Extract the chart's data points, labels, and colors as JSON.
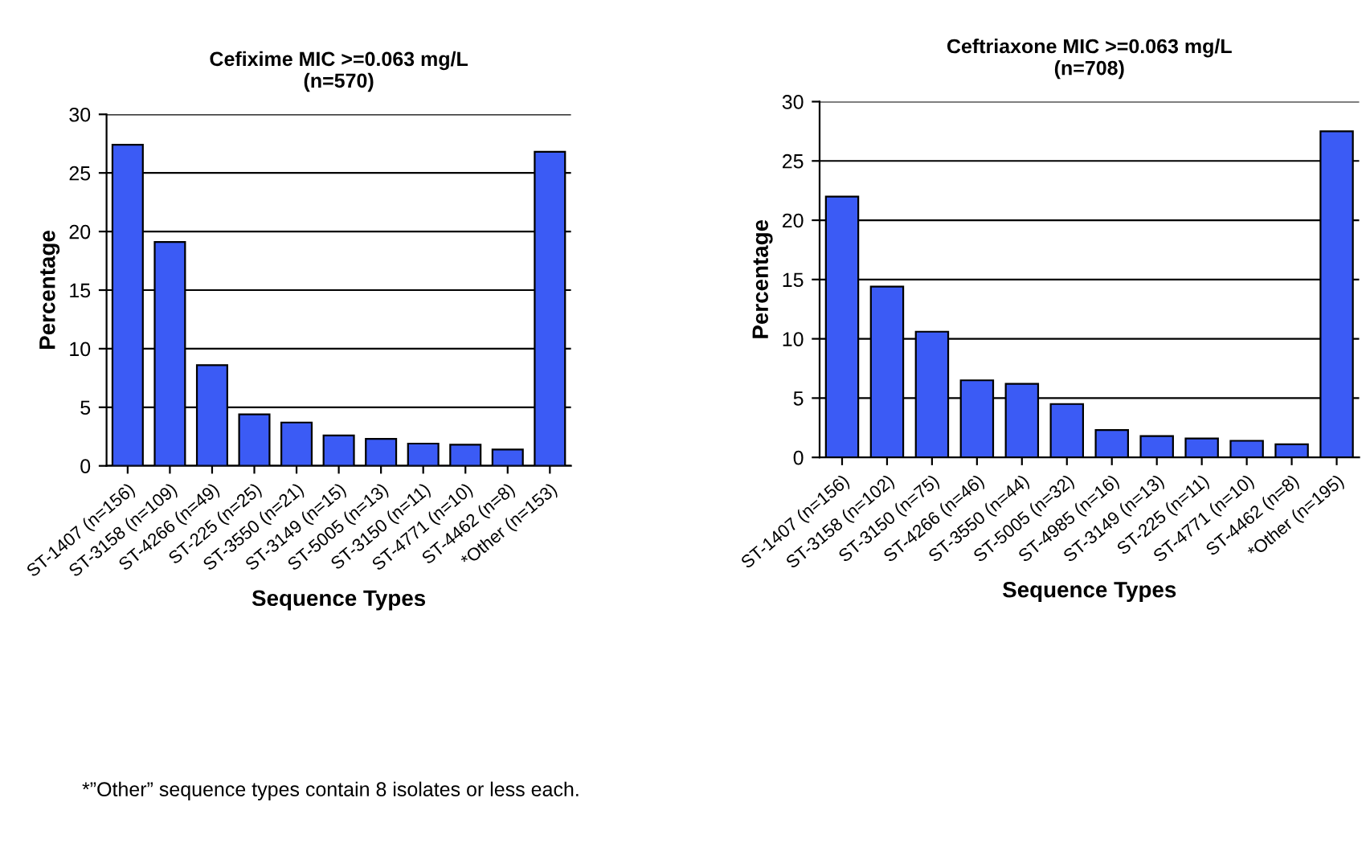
{
  "chart_data": [
    {
      "type": "bar",
      "title": "Cefixime MIC >=0.063 mg/L\n(n=570)",
      "xlabel": "Sequence Types",
      "ylabel": "Percentage",
      "categories": [
        "ST-1407 (n=156)",
        "ST-3158 (n=109)",
        "ST-4266 (n=49)",
        "ST-225 (n=25)",
        "ST-3550 (n=21)",
        "ST-3149 (n=15)",
        "ST-5005 (n=13)",
        "ST-3150 (n=11)",
        "ST-4771 (n=10)",
        "ST-4462 (n=8)",
        "*Other (n=153)"
      ],
      "values": [
        27.4,
        19.1,
        8.6,
        4.4,
        3.7,
        2.6,
        2.3,
        1.9,
        1.8,
        1.4,
        26.8
      ],
      "color": "#3b5bf5",
      "ylim": [
        0,
        30
      ],
      "yticks": [
        0,
        5,
        10,
        15,
        20,
        25,
        30
      ],
      "grid": "y",
      "annotations": [
        "*”Other” sequence types contain 8 isolates or less each."
      ]
    },
    {
      "type": "bar",
      "title": "Ceftriaxone MIC >=0.063 mg/L\n(n=708)",
      "xlabel": "Sequence Types",
      "ylabel": "Percentage",
      "categories": [
        "ST-1407 (n=156)",
        "ST-3158 (n=102)",
        "ST-3150 (n=75)",
        "ST-4266 (n=46)",
        "ST-3550 (n=44)",
        "ST-5005 (n=32)",
        "ST-4985 (n=16)",
        "ST-3149 (n=13)",
        "ST-225 (n=11)",
        "ST-4771 (n=10)",
        "ST-4462 (n=8)",
        "*Other (n=195)"
      ],
      "values": [
        22.0,
        14.4,
        10.6,
        6.5,
        6.2,
        4.5,
        2.3,
        1.8,
        1.6,
        1.4,
        1.1,
        27.5
      ],
      "color": "#3b5bf5",
      "ylim": [
        0,
        30
      ],
      "yticks": [
        0,
        5,
        10,
        15,
        20,
        25,
        30
      ],
      "grid": "y"
    }
  ]
}
